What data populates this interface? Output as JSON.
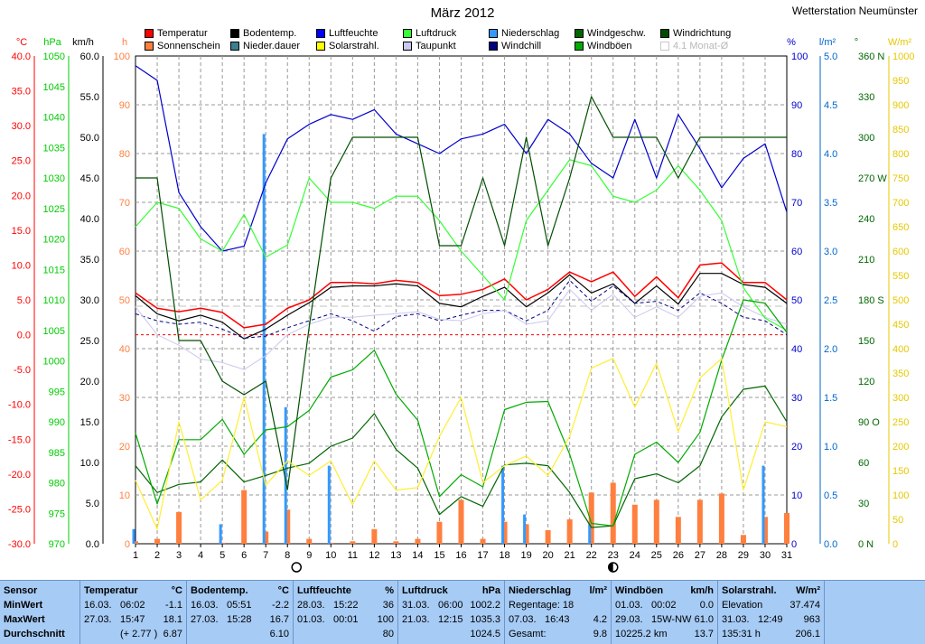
{
  "title": "März 2012",
  "station": "Wetterstation Neumünster",
  "legend": [
    {
      "label": "Temperatur",
      "color": "#ff0000"
    },
    {
      "label": "Sonnenschein",
      "color": "#ff7f3f"
    },
    {
      "label": "Bodentemp.",
      "color": "#000000"
    },
    {
      "label": "Nieder.dauer",
      "color": "#3b7f8f"
    },
    {
      "label": "Luftfeuchte",
      "color": "#0000ff"
    },
    {
      "label": "Solarstrahl.",
      "color": "#ffff00"
    },
    {
      "label": "Luftdruck",
      "color": "#33ff33"
    },
    {
      "label": "Taupunkt",
      "color": "#c8c8f0"
    },
    {
      "label": "Niederschlag",
      "color": "#3399ff"
    },
    {
      "label": "Windchill",
      "color": "#000080"
    },
    {
      "label": "Windgeschw.",
      "color": "#006600"
    },
    {
      "label": "Windböen",
      "color": "#00aa00"
    },
    {
      "label": "Windrichtung",
      "color": "#004d00"
    },
    {
      "label": "4.1 Monat-Ø",
      "color": "#ffffff",
      "dim": true
    }
  ],
  "chart_data": {
    "type": "line",
    "title": "März 2012",
    "x": [
      1,
      2,
      3,
      4,
      5,
      6,
      7,
      8,
      9,
      10,
      11,
      12,
      13,
      14,
      15,
      16,
      17,
      18,
      19,
      20,
      21,
      22,
      23,
      24,
      25,
      26,
      27,
      28,
      29,
      30,
      31
    ],
    "axes": {
      "temperature_c": {
        "label": "°C",
        "ylim": [
          -30,
          40
        ],
        "ticks": [
          "40.0",
          "35.0",
          "30.0",
          "25.0",
          "20.0",
          "15.0",
          "10.0",
          "5.0",
          "0.0",
          "-5.0",
          "-10.0",
          "-15.0",
          "-20.0",
          "-25.0",
          "-30.0"
        ],
        "color": "#ff0000"
      },
      "pressure_hpa": {
        "label": "hPa",
        "ylim": [
          970,
          1050
        ],
        "ticks": [
          "1050",
          "1045",
          "1040",
          "1035",
          "1030",
          "1025",
          "1020",
          "1015",
          "1010",
          "1005",
          "1000",
          "995",
          "990",
          "985",
          "980",
          "975",
          "970"
        ],
        "color": "#00cc00"
      },
      "wind_kmh": {
        "label": "km/h",
        "ylim": [
          0,
          60
        ],
        "ticks": [
          "60.0",
          "55.0",
          "50.0",
          "45.0",
          "40.0",
          "35.0",
          "30.0",
          "25.0",
          "20.0",
          "15.0",
          "10.0",
          "5.0",
          "0.0"
        ],
        "color": "#000000"
      },
      "sunshine_h": {
        "label": "h",
        "ylim": [
          0,
          100
        ],
        "ticks": [
          "100",
          "90",
          "80",
          "70",
          "60",
          "50",
          "40",
          "30",
          "20",
          "10",
          "0"
        ],
        "color": "#ff7f3f"
      },
      "humidity_pct": {
        "label": "%",
        "ylim": [
          0,
          100
        ],
        "ticks": [
          "100",
          "90",
          "80",
          "70",
          "60",
          "50",
          "40",
          "30",
          "20",
          "10",
          "0"
        ],
        "color": "#0000cc"
      },
      "precip_lm2": {
        "label": "l/m²",
        "ylim": [
          0,
          5
        ],
        "ticks": [
          "5.0",
          "4.5",
          "4.0",
          "3.5",
          "3.0",
          "2.5",
          "2.0",
          "1.5",
          "1.0",
          "0.5",
          "0.0"
        ],
        "color": "#0066cc"
      },
      "wind_dir_deg": {
        "label": "°",
        "ylim": [
          0,
          360
        ],
        "ticks": [
          "360 N",
          "330",
          "300",
          "270 W",
          "240",
          "210",
          "180 S",
          "150",
          "120",
          "90 O",
          "60",
          "30",
          "0 N"
        ],
        "color": "#006600"
      },
      "solar_wm2": {
        "label": "W/m²",
        "ylim": [
          0,
          1000
        ],
        "ticks": [
          "1000",
          "950",
          "900",
          "850",
          "800",
          "750",
          "700",
          "650",
          "600",
          "550",
          "500",
          "450",
          "400",
          "350",
          "300",
          "250",
          "200",
          "150",
          "100",
          "50",
          "0"
        ],
        "color": "#e6c800"
      }
    },
    "series": [
      {
        "name": "Temperatur",
        "axis": "temperature_c",
        "values": [
          6.0,
          3.8,
          3.3,
          3.8,
          3.2,
          1.0,
          1.5,
          3.8,
          5.0,
          7.5,
          7.5,
          7.3,
          7.8,
          7.5,
          5.6,
          5.8,
          6.5,
          8.0,
          5.0,
          6.5,
          9.0,
          7.6,
          9.0,
          5.5,
          8.3,
          5.3,
          10.0,
          10.3,
          7.5,
          7.5,
          5.0
        ]
      },
      {
        "name": "Bodentemp.",
        "axis": "temperature_c",
        "values": [
          5.6,
          3.0,
          2.0,
          2.8,
          1.8,
          -0.6,
          0.8,
          2.8,
          4.6,
          6.8,
          7.0,
          7.0,
          7.3,
          7.0,
          4.5,
          4.0,
          5.5,
          6.8,
          4.0,
          6.0,
          8.6,
          6.0,
          7.3,
          4.5,
          7.0,
          4.4,
          8.8,
          8.8,
          7.2,
          6.8,
          4.5
        ]
      },
      {
        "name": "Windchill",
        "axis": "temperature_c",
        "values": [
          3.0,
          2.0,
          1.5,
          1.8,
          0.8,
          -0.5,
          -0.2,
          1.0,
          2.0,
          3.0,
          2.0,
          0.5,
          2.6,
          3.0,
          2.0,
          2.8,
          3.5,
          3.5,
          2.0,
          3.5,
          7.8,
          4.8,
          7.0,
          4.5,
          4.8,
          3.5,
          6.0,
          4.5,
          2.5,
          2.0,
          0.0
        ]
      },
      {
        "name": "Taupunkt",
        "axis": "temperature_c",
        "values": [
          4.0,
          0.0,
          -1.5,
          -3.5,
          -4.0,
          -5.0,
          -3.0,
          0.0,
          1.5,
          2.5,
          2.5,
          2.8,
          3.0,
          3.3,
          2.2,
          2.0,
          3.0,
          3.5,
          1.5,
          2.0,
          6.5,
          3.5,
          5.8,
          2.5,
          4.0,
          2.5,
          5.5,
          6.0,
          4.0,
          2.5,
          1.5
        ]
      },
      {
        "name": "Luftfeuchte",
        "axis": "humidity_pct",
        "values": [
          98,
          95,
          72,
          65,
          60,
          61,
          74,
          83,
          86,
          88,
          87,
          89,
          84,
          82,
          80,
          83,
          84,
          86,
          80,
          87,
          84,
          78,
          75,
          87,
          75,
          88,
          81,
          73,
          79,
          82,
          68
        ]
      },
      {
        "name": "Luftdruck",
        "axis": "pressure_hpa",
        "values": [
          1022,
          1026,
          1025,
          1020,
          1018,
          1024,
          1017,
          1019,
          1030,
          1026,
          1026,
          1025,
          1027,
          1027,
          1023,
          1018,
          1014,
          1010,
          1023,
          1028,
          1033,
          1032,
          1027,
          1026,
          1028,
          1032,
          1028,
          1023,
          1012,
          1007,
          1005
        ]
      },
      {
        "name": "Windgeschw.",
        "axis": "wind_kmh",
        "values": [
          9.6,
          6.3,
          7.3,
          7.6,
          10.3,
          7.6,
          8.4,
          9.3,
          9.9,
          12.0,
          13.0,
          16.0,
          11.6,
          9.3,
          3.6,
          5.8,
          4.6,
          9.7,
          9.9,
          9.6,
          6.3,
          2.0,
          2.2,
          8.0,
          8.6,
          7.5,
          9.6,
          15.6,
          19.0,
          19.4,
          15.0
        ]
      },
      {
        "name": "Windböen",
        "axis": "wind_kmh",
        "values": [
          13.6,
          4.9,
          12.8,
          12.8,
          15.3,
          11.0,
          14.0,
          14.4,
          16.4,
          20.5,
          21.4,
          23.8,
          18.4,
          15.2,
          5.8,
          8.5,
          7.0,
          16.5,
          17.4,
          17.5,
          11.0,
          2.5,
          2.2,
          11.0,
          12.5,
          10.0,
          13.7,
          22.6,
          30.0,
          29.6,
          26.0
        ]
      },
      {
        "name": "Windrichtung",
        "axis": "wind_dir_deg",
        "values": [
          270,
          270,
          150,
          150,
          120,
          110,
          120,
          40,
          160,
          270,
          300,
          300,
          300,
          300,
          220,
          220,
          270,
          220,
          300,
          220,
          270,
          330,
          300,
          300,
          300,
          270,
          300,
          300,
          300,
          300,
          300
        ]
      },
      {
        "name": "Solarstrahl.",
        "axis": "solar_wm2",
        "values": [
          130,
          30,
          250,
          90,
          130,
          300,
          120,
          170,
          140,
          170,
          80,
          170,
          110,
          115,
          220,
          300,
          125,
          160,
          180,
          140,
          220,
          360,
          380,
          280,
          370,
          230,
          340,
          380,
          110,
          250,
          240
        ]
      },
      {
        "name": "Sonnenschein",
        "type": "bar",
        "axis": "sunshine_h",
        "values": [
          0.5,
          1,
          6.5,
          0,
          0.2,
          11,
          2.5,
          7,
          1,
          0.2,
          0.5,
          3,
          0.5,
          1,
          4.5,
          9,
          1,
          4.5,
          4,
          2.8,
          5,
          10.5,
          12.5,
          8,
          9,
          5.5,
          9,
          10.3,
          1.8,
          5.5,
          6.3
        ]
      },
      {
        "name": "Niederschlag",
        "type": "bar",
        "axis": "precip_lm2",
        "values": [
          0.15,
          0,
          0,
          0,
          0.2,
          0,
          4.2,
          1.4,
          0,
          0.8,
          0,
          0,
          0,
          0,
          0,
          0,
          0,
          0.8,
          0.3,
          0,
          0,
          0.2,
          0,
          0,
          0,
          0,
          0,
          0,
          0,
          0.8,
          0
        ]
      }
    ],
    "reference": {
      "label": "4.1 Monat-Ø",
      "axis": "temperature_c",
      "value": 4.1
    },
    "zero_line": {
      "axis": "temperature_c",
      "value": 0
    },
    "moon": {
      "new": "8",
      "full": "23"
    },
    "grid": true
  },
  "stats": {
    "sensor": {
      "title": "Sensor",
      "rows": [
        "MinWert",
        "MaxWert",
        "Durchschnitt"
      ]
    },
    "temp": {
      "title": "Temperatur",
      "unit": "°C",
      "rows": [
        [
          "16.03.",
          "06:02",
          "-1.1"
        ],
        [
          "27.03.",
          "15:47",
          "18.1"
        ],
        [
          "",
          "(+ 2.77 )",
          "6.87"
        ]
      ]
    },
    "boden": {
      "title": "Bodentemp.",
      "unit": "°C",
      "rows": [
        [
          "16.03.",
          "05:51",
          "-2.2"
        ],
        [
          "27.03.",
          "15:28",
          "16.7"
        ],
        [
          "",
          "",
          "6.10"
        ]
      ]
    },
    "feuchte": {
      "title": "Luftfeuchte",
      "unit": "%",
      "rows": [
        [
          "28.03.",
          "15:22",
          "36"
        ],
        [
          "01.03.",
          "00:01",
          "100"
        ],
        [
          "",
          "",
          "80"
        ]
      ]
    },
    "druck": {
      "title": "Luftdruck",
      "unit": "hPa",
      "rows": [
        [
          "31.03.",
          "06:00",
          "1002.2"
        ],
        [
          "21.03.",
          "12:15",
          "1035.3"
        ],
        [
          "",
          "",
          "1024.5"
        ]
      ]
    },
    "nieder": {
      "title": "Niederschlag",
      "unit": "l/m²",
      "rows": [
        [
          "Regentage: 18",
          "",
          ""
        ],
        [
          "07.03.",
          "16:43",
          "4.2"
        ],
        [
          "Gesamt:",
          "",
          "9.8"
        ]
      ]
    },
    "boeen": {
      "title": "Windböen",
      "unit": "km/h",
      "rows": [
        [
          "01.03.",
          "00:02",
          "0.0"
        ],
        [
          "29.03.",
          "15W-NW",
          "61.0"
        ],
        [
          "10225.2 km",
          "",
          "13.7"
        ]
      ]
    },
    "solar": {
      "title": "Solarstrahl.",
      "unit": "W/m²",
      "rows": [
        [
          "Elevation",
          "",
          "37.474"
        ],
        [
          "31.03.",
          "12:49",
          "963"
        ],
        [
          "135:31 h",
          "",
          "206.1"
        ]
      ]
    }
  }
}
